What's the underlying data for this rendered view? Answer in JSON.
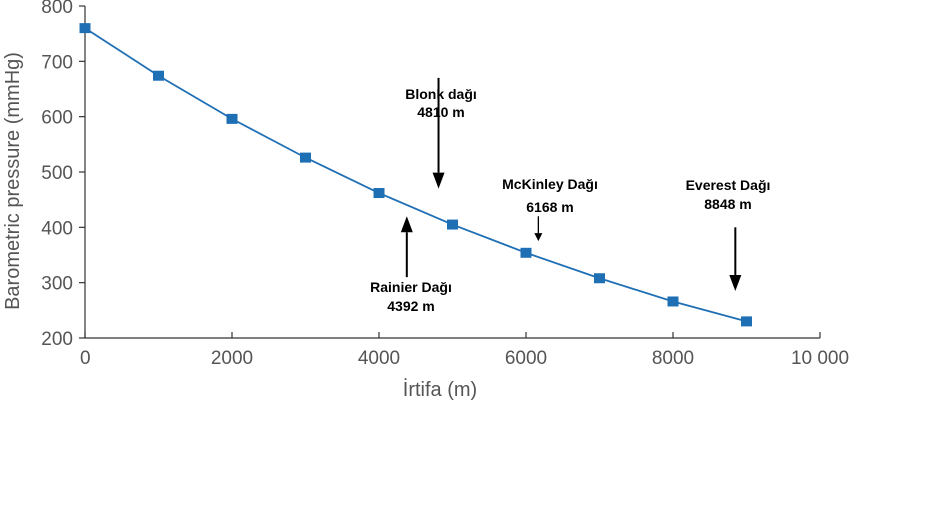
{
  "chart_data": {
    "type": "line",
    "title": "",
    "xlabel": "İrtifa (m)",
    "ylabel": "Barometric pressure (mmHg)",
    "xlim": [
      0,
      10000
    ],
    "ylim": [
      200,
      800
    ],
    "xticks": [
      0,
      2000,
      4000,
      6000,
      8000,
      10000
    ],
    "xtick_labels": [
      "0",
      "2000",
      "4000",
      "6000",
      "8000",
      "10 000"
    ],
    "yticks": [
      200,
      300,
      400,
      500,
      600,
      700,
      800
    ],
    "ytick_labels": [
      "200",
      "300",
      "400",
      "500",
      "600",
      "700",
      "800"
    ],
    "grid": false,
    "series": [
      {
        "name": "Barometric pressure",
        "x": [
          0,
          1000,
          2000,
          3000,
          4000,
          5000,
          6000,
          7000,
          8000,
          9000
        ],
        "y": [
          760,
          674,
          596,
          526,
          462,
          405,
          354,
          308,
          266,
          230
        ],
        "color": "#1f6fb5",
        "marker": "square"
      }
    ],
    "annotations": [
      {
        "id": "blonk",
        "line1": "Blonk dağı",
        "line2": "4810 m",
        "arrow_x": 4810,
        "arrow_y_from": 670,
        "arrow_y_to": 470,
        "direction": "down"
      },
      {
        "id": "rainier",
        "line1": "Rainier Dağı",
        "line2": "4392 m",
        "arrow_x": 4392,
        "arrow_y_from": 310,
        "arrow_y_to": 420,
        "direction": "up"
      },
      {
        "id": "mckinley",
        "line1": "McKinley Dağı",
        "line2": "6168 m",
        "arrow_x": 6168,
        "arrow_y_from": 420,
        "arrow_y_to": 375,
        "direction": "down"
      },
      {
        "id": "everest",
        "line1": "Everest Dağı",
        "line2": "8848 m",
        "arrow_x": 8848,
        "arrow_y_from": 400,
        "arrow_y_to": 285,
        "direction": "down"
      }
    ]
  }
}
